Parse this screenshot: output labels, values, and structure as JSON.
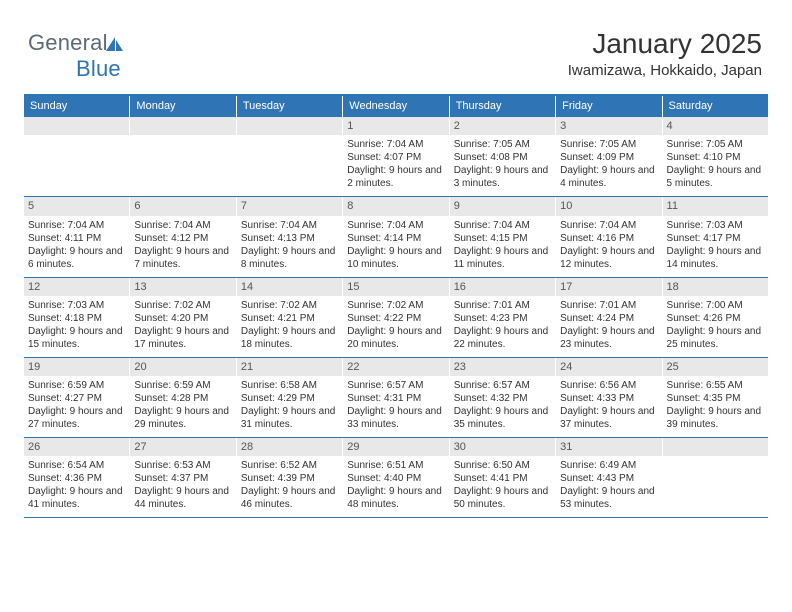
{
  "logo": {
    "text1": "General",
    "text2": "Blue"
  },
  "title": "January 2025",
  "subtitle": "Iwamizawa, Hokkaido, Japan",
  "colors": {
    "accent": "#2f75b5",
    "header_text": "#ffffff",
    "daynum_bg": "#e8e8e8",
    "text": "#333333",
    "logo_gray": "#5f6a72"
  },
  "day_headers": [
    "Sunday",
    "Monday",
    "Tuesday",
    "Wednesday",
    "Thursday",
    "Friday",
    "Saturday"
  ],
  "weeks": [
    [
      {
        "n": "",
        "empty": true
      },
      {
        "n": "",
        "empty": true
      },
      {
        "n": "",
        "empty": true
      },
      {
        "n": "1",
        "sr": "7:04 AM",
        "ss": "4:07 PM",
        "dl": "9 hours and 2 minutes."
      },
      {
        "n": "2",
        "sr": "7:05 AM",
        "ss": "4:08 PM",
        "dl": "9 hours and 3 minutes."
      },
      {
        "n": "3",
        "sr": "7:05 AM",
        "ss": "4:09 PM",
        "dl": "9 hours and 4 minutes."
      },
      {
        "n": "4",
        "sr": "7:05 AM",
        "ss": "4:10 PM",
        "dl": "9 hours and 5 minutes."
      }
    ],
    [
      {
        "n": "5",
        "sr": "7:04 AM",
        "ss": "4:11 PM",
        "dl": "9 hours and 6 minutes."
      },
      {
        "n": "6",
        "sr": "7:04 AM",
        "ss": "4:12 PM",
        "dl": "9 hours and 7 minutes."
      },
      {
        "n": "7",
        "sr": "7:04 AM",
        "ss": "4:13 PM",
        "dl": "9 hours and 8 minutes."
      },
      {
        "n": "8",
        "sr": "7:04 AM",
        "ss": "4:14 PM",
        "dl": "9 hours and 10 minutes."
      },
      {
        "n": "9",
        "sr": "7:04 AM",
        "ss": "4:15 PM",
        "dl": "9 hours and 11 minutes."
      },
      {
        "n": "10",
        "sr": "7:04 AM",
        "ss": "4:16 PM",
        "dl": "9 hours and 12 minutes."
      },
      {
        "n": "11",
        "sr": "7:03 AM",
        "ss": "4:17 PM",
        "dl": "9 hours and 14 minutes."
      }
    ],
    [
      {
        "n": "12",
        "sr": "7:03 AM",
        "ss": "4:18 PM",
        "dl": "9 hours and 15 minutes."
      },
      {
        "n": "13",
        "sr": "7:02 AM",
        "ss": "4:20 PM",
        "dl": "9 hours and 17 minutes."
      },
      {
        "n": "14",
        "sr": "7:02 AM",
        "ss": "4:21 PM",
        "dl": "9 hours and 18 minutes."
      },
      {
        "n": "15",
        "sr": "7:02 AM",
        "ss": "4:22 PM",
        "dl": "9 hours and 20 minutes."
      },
      {
        "n": "16",
        "sr": "7:01 AM",
        "ss": "4:23 PM",
        "dl": "9 hours and 22 minutes."
      },
      {
        "n": "17",
        "sr": "7:01 AM",
        "ss": "4:24 PM",
        "dl": "9 hours and 23 minutes."
      },
      {
        "n": "18",
        "sr": "7:00 AM",
        "ss": "4:26 PM",
        "dl": "9 hours and 25 minutes."
      }
    ],
    [
      {
        "n": "19",
        "sr": "6:59 AM",
        "ss": "4:27 PM",
        "dl": "9 hours and 27 minutes."
      },
      {
        "n": "20",
        "sr": "6:59 AM",
        "ss": "4:28 PM",
        "dl": "9 hours and 29 minutes."
      },
      {
        "n": "21",
        "sr": "6:58 AM",
        "ss": "4:29 PM",
        "dl": "9 hours and 31 minutes."
      },
      {
        "n": "22",
        "sr": "6:57 AM",
        "ss": "4:31 PM",
        "dl": "9 hours and 33 minutes."
      },
      {
        "n": "23",
        "sr": "6:57 AM",
        "ss": "4:32 PM",
        "dl": "9 hours and 35 minutes."
      },
      {
        "n": "24",
        "sr": "6:56 AM",
        "ss": "4:33 PM",
        "dl": "9 hours and 37 minutes."
      },
      {
        "n": "25",
        "sr": "6:55 AM",
        "ss": "4:35 PM",
        "dl": "9 hours and 39 minutes."
      }
    ],
    [
      {
        "n": "26",
        "sr": "6:54 AM",
        "ss": "4:36 PM",
        "dl": "9 hours and 41 minutes."
      },
      {
        "n": "27",
        "sr": "6:53 AM",
        "ss": "4:37 PM",
        "dl": "9 hours and 44 minutes."
      },
      {
        "n": "28",
        "sr": "6:52 AM",
        "ss": "4:39 PM",
        "dl": "9 hours and 46 minutes."
      },
      {
        "n": "29",
        "sr": "6:51 AM",
        "ss": "4:40 PM",
        "dl": "9 hours and 48 minutes."
      },
      {
        "n": "30",
        "sr": "6:50 AM",
        "ss": "4:41 PM",
        "dl": "9 hours and 50 minutes."
      },
      {
        "n": "31",
        "sr": "6:49 AM",
        "ss": "4:43 PM",
        "dl": "9 hours and 53 minutes."
      },
      {
        "n": "",
        "empty": true
      }
    ]
  ],
  "labels": {
    "sunrise": "Sunrise: ",
    "sunset": "Sunset: ",
    "daylight": "Daylight: "
  }
}
